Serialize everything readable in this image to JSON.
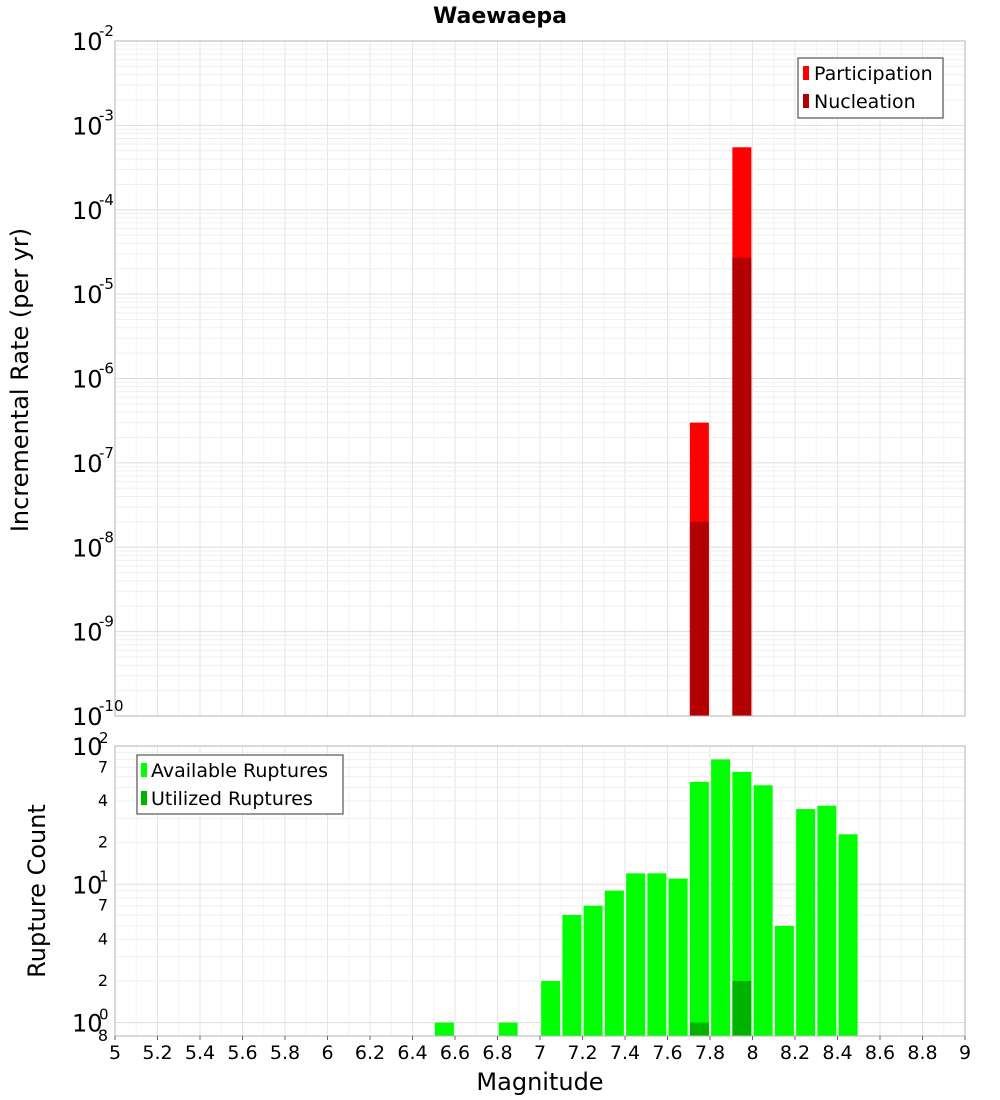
{
  "title": "Waewaepa",
  "colors": {
    "participation": "#ff0000",
    "nucleation": "#b30000",
    "available": "#00ff00",
    "utilized": "#00b300"
  },
  "chart_data": [
    {
      "type": "bar",
      "title": "Waewaepa",
      "ylabel": "Incremental Rate (per yr)",
      "xlabel": "",
      "yscale": "log",
      "ylim": [
        1e-10,
        0.01
      ],
      "xlim": [
        5,
        9
      ],
      "y_tick_labels": [
        {
          "base": "10",
          "exp": "-10"
        },
        {
          "base": "10",
          "exp": "-9"
        },
        {
          "base": "10",
          "exp": "-8"
        },
        {
          "base": "10",
          "exp": "-7"
        },
        {
          "base": "10",
          "exp": "-6"
        },
        {
          "base": "10",
          "exp": "-5"
        },
        {
          "base": "10",
          "exp": "-4"
        },
        {
          "base": "10",
          "exp": "-3"
        },
        {
          "base": "10",
          "exp": "-2"
        }
      ],
      "legend": {
        "position": "top-right",
        "entries": [
          "Participation",
          "Nucleation"
        ]
      },
      "grid": true,
      "series": [
        {
          "name": "Participation",
          "x": [
            7.75,
            7.95
          ],
          "values": [
            3e-07,
            0.00055
          ]
        },
        {
          "name": "Nucleation",
          "x": [
            7.75,
            7.95
          ],
          "values": [
            2e-08,
            2.7e-05
          ]
        }
      ]
    },
    {
      "type": "bar",
      "title": "",
      "ylabel": "Rupture Count",
      "xlabel": "Magnitude",
      "yscale": "log",
      "ylim": [
        0.8,
        100
      ],
      "xlim": [
        5,
        9
      ],
      "x_tick_labels": [
        "5",
        "5.2",
        "5.4",
        "5.6",
        "5.8",
        "6",
        "6.2",
        "6.4",
        "6.6",
        "6.8",
        "7",
        "7.2",
        "7.4",
        "7.6",
        "7.8",
        "8",
        "8.2",
        "8.4",
        "8.6",
        "8.8",
        "9"
      ],
      "y_major_labels": [
        {
          "base": "10",
          "exp": "2"
        },
        {
          "base": "10",
          "exp": "1"
        },
        {
          "base": "10",
          "exp": "0"
        }
      ],
      "y_minor_labels": [
        "7",
        "4",
        "2",
        "7",
        "4",
        "2",
        "8"
      ],
      "legend": {
        "position": "top-left",
        "entries": [
          "Available Ruptures",
          "Utilized Ruptures"
        ]
      },
      "grid": true,
      "series": [
        {
          "name": "Available Ruptures",
          "x": [
            6.55,
            6.85,
            7.05,
            7.15,
            7.25,
            7.35,
            7.45,
            7.55,
            7.65,
            7.75,
            7.85,
            7.95,
            8.05,
            8.15,
            8.25,
            8.35,
            8.45
          ],
          "values": [
            1,
            1,
            2,
            6,
            7,
            9,
            12,
            12,
            11,
            55,
            80,
            65,
            52,
            5,
            35,
            37,
            23
          ]
        },
        {
          "name": "Utilized Ruptures",
          "x": [
            7.75,
            7.95
          ],
          "values": [
            1,
            2
          ]
        }
      ]
    }
  ]
}
